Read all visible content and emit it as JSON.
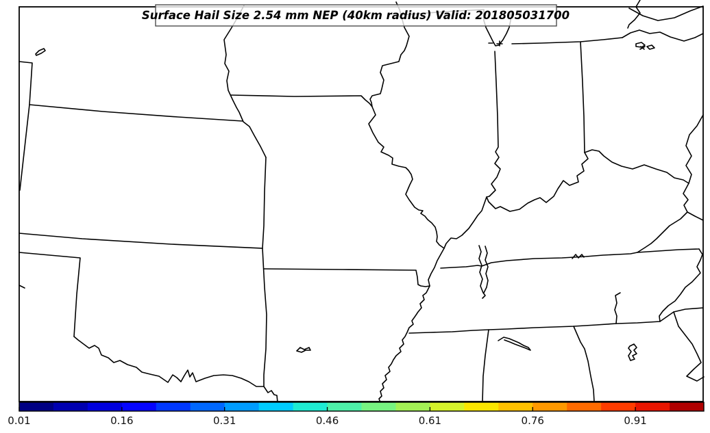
{
  "title": {
    "text": "Surface Hail Size 2.54 mm NEP (40km radius) Valid: 201805031700"
  },
  "colorbar": {
    "ticks": [
      "0.01",
      "0.16",
      "0.31",
      "0.46",
      "0.61",
      "0.76",
      "0.91"
    ],
    "tick_values": [
      0.01,
      0.16,
      0.31,
      0.46,
      0.61,
      0.76,
      0.91
    ],
    "range": [
      0.01,
      1.01
    ],
    "colors": [
      "#000083",
      "#0000B0",
      "#0000DD",
      "#0505FF",
      "#0038FF",
      "#0068FF",
      "#009CFF",
      "#00CCFF",
      "#1EEBD2",
      "#4DF0A8",
      "#77F381",
      "#A3F055",
      "#D4F22B",
      "#FAE600",
      "#FFC100",
      "#FF9900",
      "#FF6B00",
      "#FF3C00",
      "#E81500",
      "#AF0000"
    ]
  },
  "chart_data": {
    "type": "heatmap",
    "title": "Surface Hail Size 2.54 mm NEP (40km radius) Valid: 201805031700",
    "colorbar_ticks": [
      0.01,
      0.16,
      0.31,
      0.46,
      0.61,
      0.76,
      0.91
    ],
    "colorbar_range": [
      0.01,
      1.01
    ],
    "colormap_colors": [
      "#000083",
      "#0000B0",
      "#0000DD",
      "#0505FF",
      "#0038FF",
      "#0068FF",
      "#009CFF",
      "#00CCFF",
      "#1EEBD2",
      "#4DF0A8",
      "#77F381",
      "#A3F055",
      "#D4F22B",
      "#FAE600",
      "#FFC100",
      "#FF9900",
      "#FF6B00",
      "#FF3C00",
      "#E81500",
      "#AF0000"
    ],
    "shaded_regions": [],
    "note": "No NEP values at or above 0.01 are shaded anywhere on the map; only the basemap state/river outlines are visible.",
    "legend_position": "bottom",
    "grid": false
  }
}
